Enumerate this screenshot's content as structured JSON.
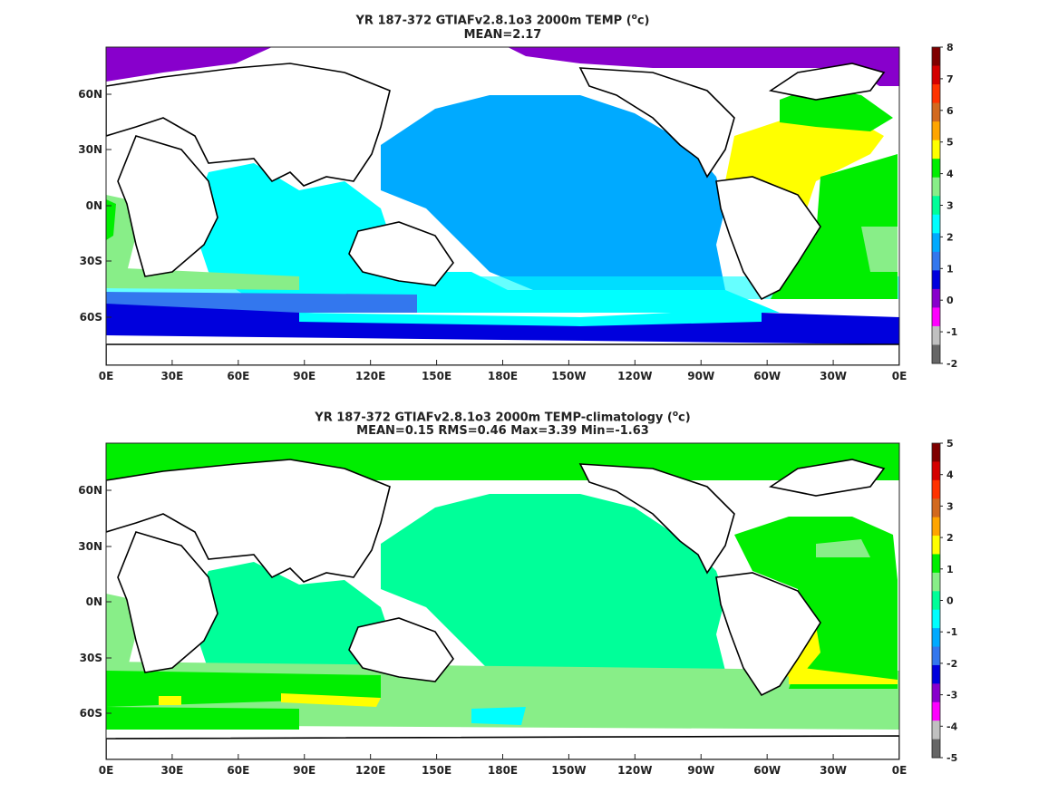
{
  "panels": [
    {
      "title_prefix": "YR 187-372 GTIAFv2.8.1o3 2000m TEMP (",
      "title_unit_sup": "o",
      "title_suffix": "c)",
      "subtitle": "MEAN=2.17",
      "colorbar_ticks": [
        "8",
        "7",
        "6",
        "5",
        "4",
        "3",
        "2",
        "1",
        "0",
        "-1",
        "-2"
      ],
      "colorbar_colors": [
        "#7f0000",
        "#d40000",
        "#ff3300",
        "#d2691e",
        "#ffa500",
        "#ffff00",
        "#00ee00",
        "#88ee88",
        "#00ff99",
        "#00ffff",
        "#00aaff",
        "#3377ee",
        "#0000dd",
        "#8800cc",
        "#ff00ff",
        "#c0c0c0",
        "#666666"
      ]
    },
    {
      "title_prefix": "YR 187-372 GTIAFv2.8.1o3 2000m TEMP-climatology (",
      "title_unit_sup": "o",
      "title_suffix": "c)",
      "subtitle": "MEAN=0.15   RMS=0.46   Max=3.39   Min=-1.63",
      "colorbar_ticks": [
        "5",
        "4",
        "3",
        "2",
        "1",
        "0",
        "-1",
        "-2",
        "-3",
        "-4",
        "-5"
      ],
      "colorbar_colors": [
        "#7f0000",
        "#d40000",
        "#ff3300",
        "#d2691e",
        "#ffa500",
        "#ffff00",
        "#00ee00",
        "#88ee88",
        "#00ff99",
        "#00ffff",
        "#00aaff",
        "#3377ee",
        "#0000dd",
        "#8800cc",
        "#ff00ff",
        "#c0c0c0",
        "#666666"
      ]
    }
  ],
  "x_ticks": [
    "0E",
    "30E",
    "60E",
    "90E",
    "120E",
    "150E",
    "180E",
    "150W",
    "120W",
    "90W",
    "60W",
    "30W",
    "0E"
  ],
  "y_ticks": [
    "60N",
    "30N",
    "0N",
    "30S",
    "60S"
  ],
  "colors": {
    "land": "#ffffff",
    "coast": "#000000",
    "top_pacific": "#00aaff",
    "top_indian": "#00ffff",
    "top_southern": "#0000dd",
    "top_atlantic_north": "#ffff00",
    "top_atlantic_south": "#00ee00",
    "top_arctic": "#8800cc",
    "bot_main": "#00ff99",
    "bot_atlantic": "#00ee00",
    "bot_southern": "#88ee88"
  }
}
